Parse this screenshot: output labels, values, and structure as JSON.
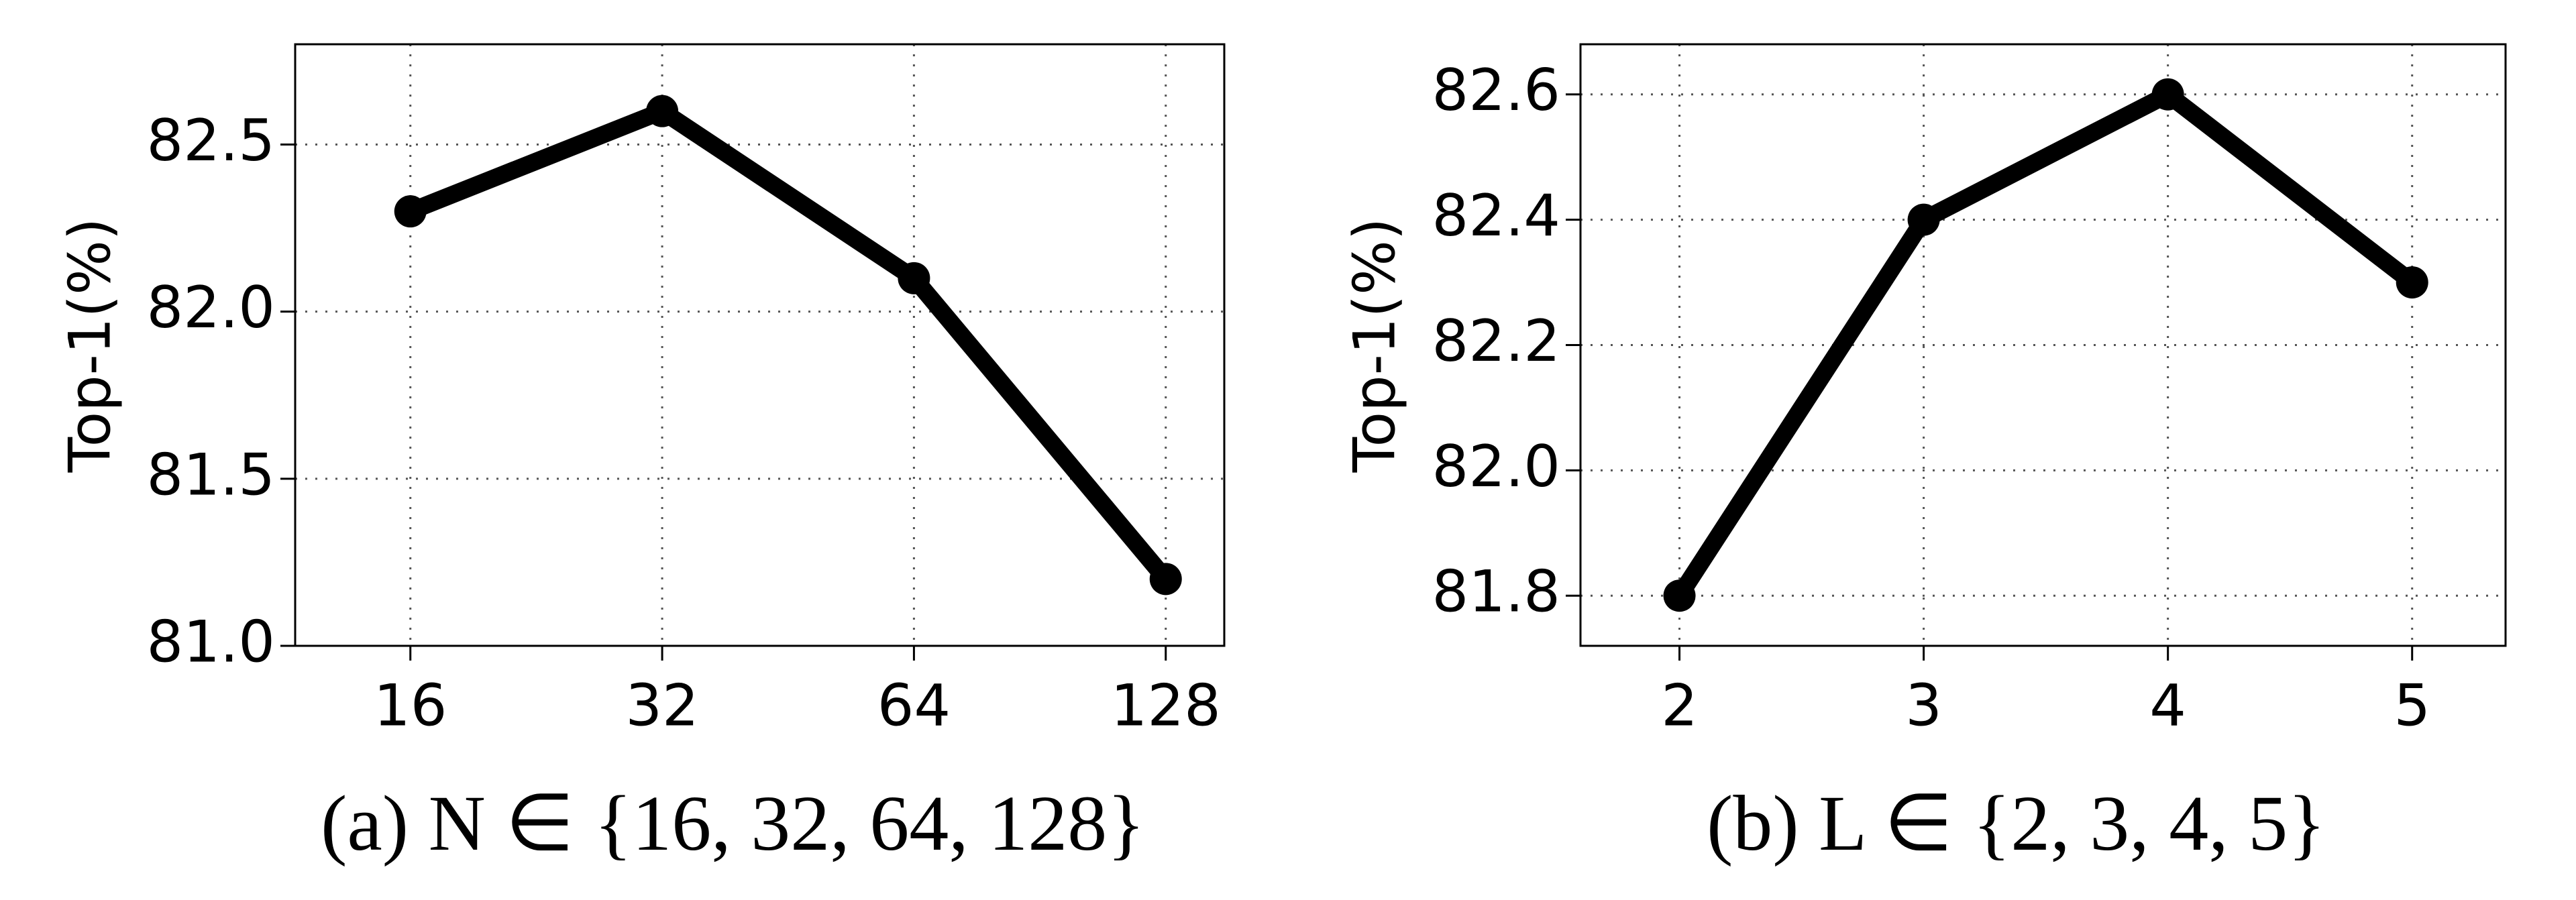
{
  "chart_data": [
    {
      "type": "line",
      "ylabel": "Top-1(%)",
      "caption": "(a) N ∈ {16, 32, 64, 128}",
      "categories": [
        "16",
        "32",
        "64",
        "128"
      ],
      "values": [
        82.3,
        82.6,
        82.1,
        81.2
      ],
      "color": "#000000",
      "ylim": [
        81.0,
        82.8
      ],
      "yticks": [
        {
          "value": 81.0,
          "label": "81.0"
        },
        81.5,
        {
          "value": 82.0,
          "label": "82.0"
        },
        82.5
      ],
      "grid": true
    },
    {
      "type": "line",
      "ylabel": "Top-1(%)",
      "caption": "(b) L ∈ {2, 3, 4, 5}",
      "categories": [
        "2",
        "3",
        "4",
        "5"
      ],
      "values": [
        81.8,
        82.4,
        82.6,
        82.3
      ],
      "color": "#000000",
      "ylim": [
        81.72,
        82.68
      ],
      "yticks": [
        81.8,
        {
          "value": 82.0,
          "label": "82.0"
        },
        82.2,
        82.4,
        82.6
      ],
      "grid": true
    }
  ]
}
